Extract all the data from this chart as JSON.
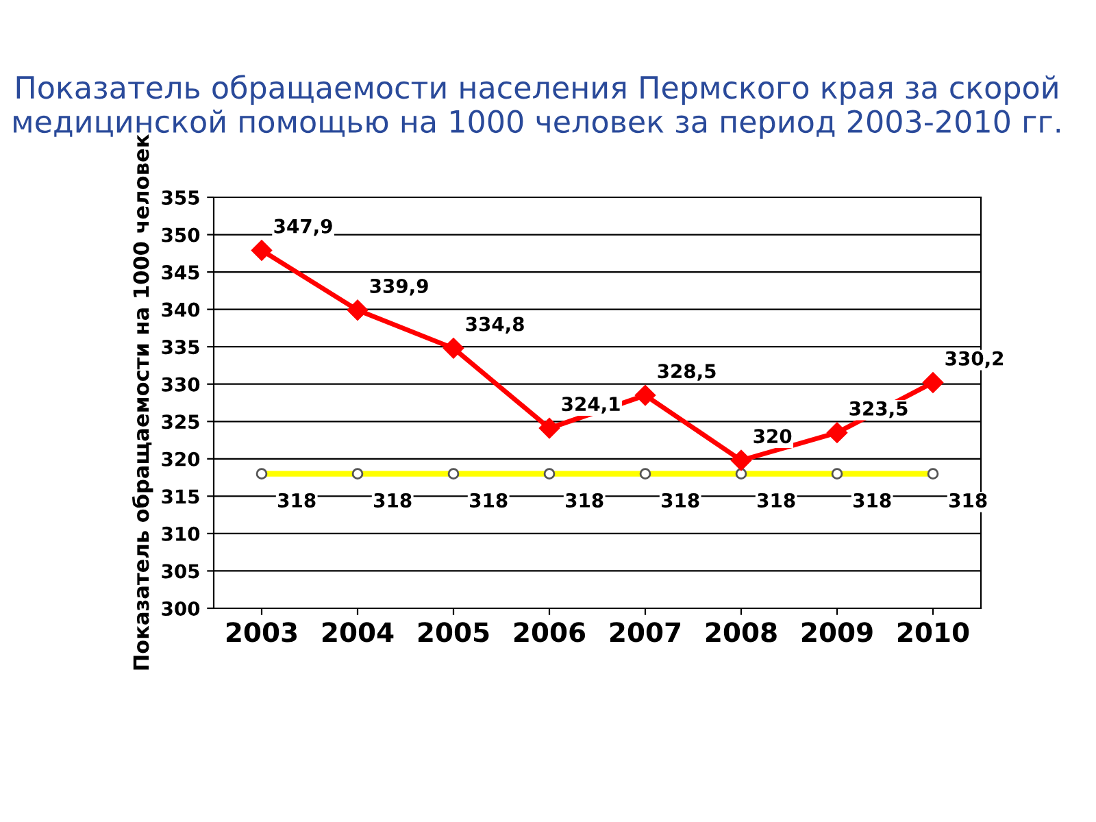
{
  "chart_data": {
    "type": "line",
    "title": "Показатель обращаемости населения Пермского края за скорой медицинской помощью на 1000 человек за период 2003-2010 гг.",
    "ylabel": "Показатель обращаемости на 1000 человек",
    "categories": [
      "2003",
      "2004",
      "2005",
      "2006",
      "2007",
      "2008",
      "2009",
      "2010"
    ],
    "series": [
      {
        "color": "#ffff00",
        "marker": "circle",
        "values": [
          318,
          318,
          318,
          318,
          318,
          318,
          318,
          318
        ],
        "value_labels": [
          "318",
          "318",
          "318",
          "318",
          "318",
          "318",
          "318",
          "318"
        ]
      },
      {
        "color": "#ff0000",
        "marker": "diamond",
        "values": [
          347.9,
          339.9,
          334.8,
          324.1,
          328.5,
          319.8,
          323.5,
          330.2
        ],
        "value_labels": [
          "347,9",
          "339,9",
          "334,8",
          "324,1",
          "328,5",
          "320",
          "323,5",
          "330,2"
        ]
      }
    ],
    "ylim": [
      300,
      355
    ],
    "yticks": [
      300,
      305,
      310,
      315,
      320,
      325,
      330,
      335,
      340,
      345,
      350,
      355
    ],
    "grid": "y",
    "line_style": "solid",
    "legend": false
  }
}
